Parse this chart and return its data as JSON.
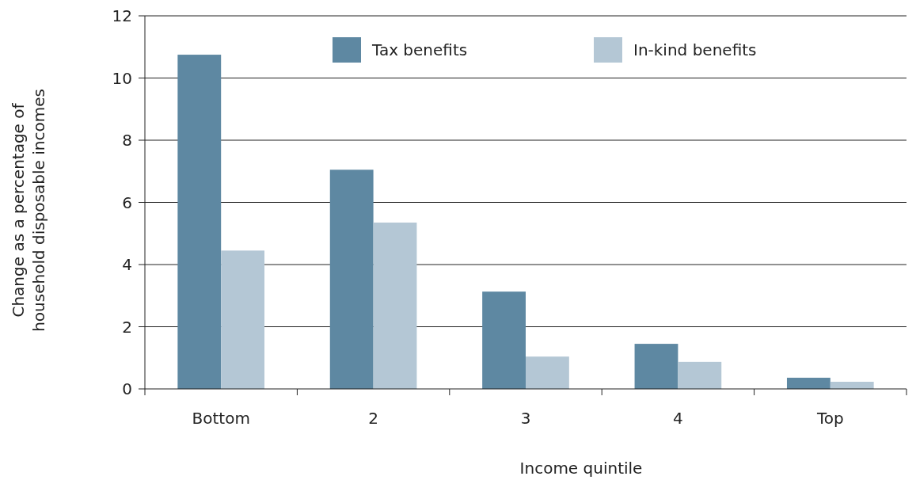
{
  "chart_data": {
    "type": "bar",
    "xlabel": "Income quintile",
    "ylabel": "Change as a percentage of household disposable incomes",
    "categories": [
      "Bottom",
      "2",
      "3",
      "4",
      "Top"
    ],
    "series": [
      {
        "name": "Tax benefits",
        "color": "#5e88a2",
        "values": [
          10.75,
          7.05,
          3.13,
          1.45,
          0.36
        ]
      },
      {
        "name": "In-kind benefits",
        "color": "#b4c7d5",
        "values": [
          4.45,
          5.35,
          1.04,
          0.87,
          0.23
        ]
      }
    ],
    "ylim": [
      0,
      12
    ],
    "yticks": [
      0,
      2,
      4,
      6,
      8,
      10,
      12
    ],
    "grid": "y",
    "legend": "top"
  }
}
